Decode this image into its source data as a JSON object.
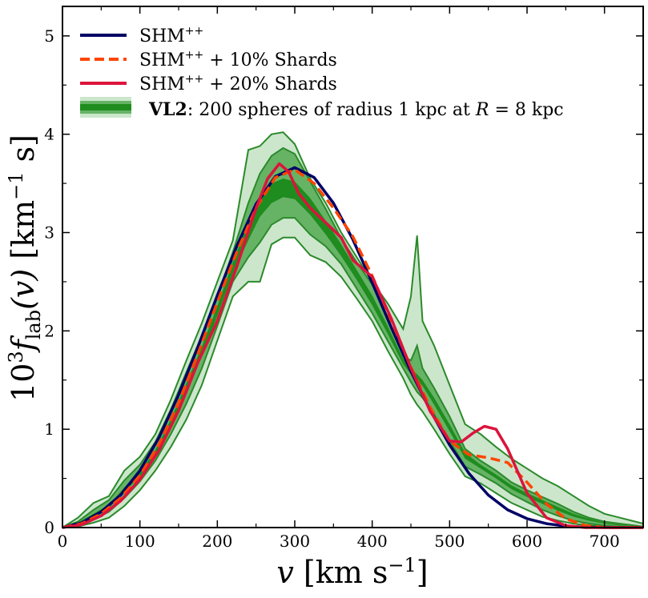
{
  "chart_data": {
    "type": "line",
    "xlabel": "v [km s^-1]",
    "ylabel": "10^3 f_lab(v) [km^-1 s]",
    "xlim": [
      0,
      750
    ],
    "ylim": [
      0,
      5.3
    ],
    "xticks": [
      0,
      100,
      200,
      300,
      400,
      500,
      600,
      700
    ],
    "yticks": [
      0,
      1,
      2,
      3,
      4,
      5
    ],
    "legend_position": "top-left",
    "grid": false,
    "colors": {
      "shm": "#000066",
      "shards10": "#ff4500",
      "shards20": "#dc143c",
      "band_outer": "#cce6cc",
      "band_mid": "#66b366",
      "band_inner": "#1e8c1e",
      "band_edge": "#2a8a2a"
    },
    "series": [
      {
        "name": "SHM++",
        "style": "solid",
        "x": [
          0,
          25,
          50,
          75,
          100,
          125,
          150,
          175,
          200,
          225,
          250,
          275,
          300,
          325,
          350,
          375,
          400,
          425,
          450,
          475,
          500,
          525,
          550,
          575,
          600,
          625,
          650,
          675,
          700,
          725,
          750
        ],
        "y": [
          0,
          0.05,
          0.16,
          0.33,
          0.58,
          0.92,
          1.35,
          1.84,
          2.36,
          2.86,
          3.29,
          3.57,
          3.66,
          3.56,
          3.3,
          2.93,
          2.49,
          2.03,
          1.59,
          1.19,
          0.84,
          0.55,
          0.33,
          0.18,
          0.09,
          0.04,
          0.015,
          0.005,
          0,
          0,
          0
        ]
      },
      {
        "name": "SHM++ + 10% Shards",
        "style": "dashed",
        "x": [
          0,
          25,
          50,
          75,
          100,
          125,
          150,
          175,
          200,
          225,
          250,
          275,
          300,
          325,
          350,
          375,
          400,
          425,
          450,
          475,
          500,
          525,
          550,
          575,
          600,
          625,
          650,
          675,
          700,
          725,
          750
        ],
        "y": [
          0,
          0.04,
          0.14,
          0.3,
          0.53,
          0.85,
          1.27,
          1.77,
          2.29,
          2.8,
          3.25,
          3.56,
          3.64,
          3.5,
          3.25,
          2.96,
          2.56,
          2.1,
          1.63,
          1.22,
          0.88,
          0.74,
          0.71,
          0.66,
          0.46,
          0.24,
          0.09,
          0.02,
          0,
          0,
          0
        ]
      },
      {
        "name": "SHM++ + 20% Shards",
        "style": "solid",
        "x": [
          0,
          25,
          50,
          75,
          100,
          125,
          150,
          175,
          200,
          225,
          250,
          265,
          280,
          292,
          305,
          320,
          340,
          360,
          375,
          400,
          425,
          450,
          475,
          500,
          515,
          530,
          545,
          560,
          575,
          600,
          625,
          650,
          675,
          700,
          750
        ],
        "y": [
          0,
          0.03,
          0.12,
          0.27,
          0.49,
          0.79,
          1.19,
          1.68,
          2.1,
          2.65,
          3.25,
          3.55,
          3.7,
          3.62,
          3.4,
          3.25,
          3.1,
          2.95,
          2.72,
          2.55,
          2.12,
          1.62,
          1.18,
          0.88,
          0.87,
          0.96,
          1.03,
          1.0,
          0.8,
          0.35,
          0.1,
          0.02,
          0,
          0,
          0
        ]
      }
    ],
    "band": {
      "name": "VL2: 200 spheres of radius 1 kpc at R = 8 kpc",
      "x": [
        0,
        20,
        40,
        60,
        80,
        100,
        120,
        140,
        160,
        180,
        200,
        220,
        240,
        255,
        270,
        285,
        300,
        320,
        340,
        360,
        380,
        400,
        420,
        440,
        450,
        458,
        465,
        480,
        500,
        520,
        540,
        560,
        580,
        600,
        620,
        640,
        660,
        680,
        700,
        720,
        740,
        750
      ],
      "outer_upper": [
        0,
        0.1,
        0.25,
        0.32,
        0.58,
        0.72,
        0.95,
        1.3,
        1.7,
        2.08,
        2.5,
        2.92,
        3.84,
        3.88,
        4.0,
        4.02,
        3.9,
        3.55,
        3.3,
        3.0,
        2.75,
        2.5,
        2.28,
        2.02,
        2.35,
        2.97,
        2.1,
        1.85,
        1.45,
        1.05,
        0.95,
        0.82,
        0.7,
        0.6,
        0.5,
        0.42,
        0.32,
        0.22,
        0.14,
        0.1,
        0.06,
        0.04
      ],
      "outer_lower": [
        0,
        0.01,
        0.05,
        0.1,
        0.22,
        0.38,
        0.58,
        0.82,
        1.1,
        1.45,
        1.9,
        2.35,
        2.5,
        2.5,
        2.88,
        2.95,
        2.95,
        2.77,
        2.7,
        2.55,
        2.33,
        2.1,
        1.8,
        1.52,
        1.35,
        1.25,
        1.18,
        1.0,
        0.75,
        0.52,
        0.45,
        0.35,
        0.25,
        0.18,
        0.11,
        0.07,
        0.04,
        0.02,
        0.01,
        0,
        0,
        0
      ],
      "mid_upper": [
        0,
        0.06,
        0.18,
        0.28,
        0.48,
        0.64,
        0.87,
        1.2,
        1.58,
        1.95,
        2.35,
        2.8,
        3.3,
        3.6,
        3.78,
        3.86,
        3.8,
        3.52,
        3.24,
        2.94,
        2.7,
        2.47,
        2.14,
        1.74,
        1.7,
        1.85,
        1.62,
        1.42,
        1.13,
        0.8,
        0.68,
        0.58,
        0.46,
        0.38,
        0.31,
        0.24,
        0.16,
        0.1,
        0.06,
        0.04,
        0.02,
        0.01
      ],
      "mid_lower": [
        0,
        0.02,
        0.08,
        0.16,
        0.3,
        0.47,
        0.68,
        0.95,
        1.26,
        1.62,
        2.05,
        2.5,
        2.75,
        2.9,
        3.08,
        3.15,
        3.15,
        2.98,
        2.86,
        2.68,
        2.43,
        2.18,
        1.9,
        1.62,
        1.48,
        1.38,
        1.32,
        1.15,
        0.88,
        0.62,
        0.54,
        0.45,
        0.34,
        0.26,
        0.18,
        0.12,
        0.07,
        0.04,
        0.02,
        0.01,
        0,
        0
      ],
      "inner_upper": [
        0,
        0.05,
        0.14,
        0.23,
        0.41,
        0.56,
        0.79,
        1.1,
        1.47,
        1.84,
        2.25,
        2.7,
        3.1,
        3.36,
        3.5,
        3.55,
        3.52,
        3.35,
        3.12,
        2.88,
        2.62,
        2.36,
        2.05,
        1.72,
        1.62,
        1.56,
        1.5,
        1.32,
        1.05,
        0.76,
        0.64,
        0.54,
        0.43,
        0.35,
        0.28,
        0.21,
        0.14,
        0.09,
        0.05,
        0.03,
        0.01,
        0
      ],
      "inner_lower": [
        0,
        0.03,
        0.11,
        0.2,
        0.36,
        0.52,
        0.74,
        1.04,
        1.38,
        1.74,
        2.15,
        2.58,
        2.92,
        3.16,
        3.3,
        3.36,
        3.34,
        3.18,
        2.98,
        2.76,
        2.52,
        2.26,
        1.97,
        1.66,
        1.56,
        1.5,
        1.44,
        1.25,
        0.98,
        0.7,
        0.6,
        0.5,
        0.39,
        0.31,
        0.24,
        0.17,
        0.11,
        0.07,
        0.04,
        0.02,
        0.01,
        0
      ]
    }
  },
  "legend": {
    "shm_label": "SHM",
    "shm_sup": "++",
    "shards10_tail": " + 10% Shards",
    "shards20_tail": " + 20% Shards",
    "vl2_bold": "VL2",
    "vl2_text": ": 200 spheres of radius 1 kpc at ",
    "vl2_eq_r": "R",
    "vl2_eq_tail": " = 8 kpc"
  },
  "axes": {
    "x_v": "v",
    "x_unit": " [km s",
    "x_exp": "−1",
    "x_close": "]",
    "y_pre": "10",
    "y_exp3": "3",
    "y_f": "f",
    "y_sub": "lab",
    "y_arg": "(v)",
    "y_unit": " [km",
    "y_exp": "−1",
    "y_close": " s]"
  }
}
